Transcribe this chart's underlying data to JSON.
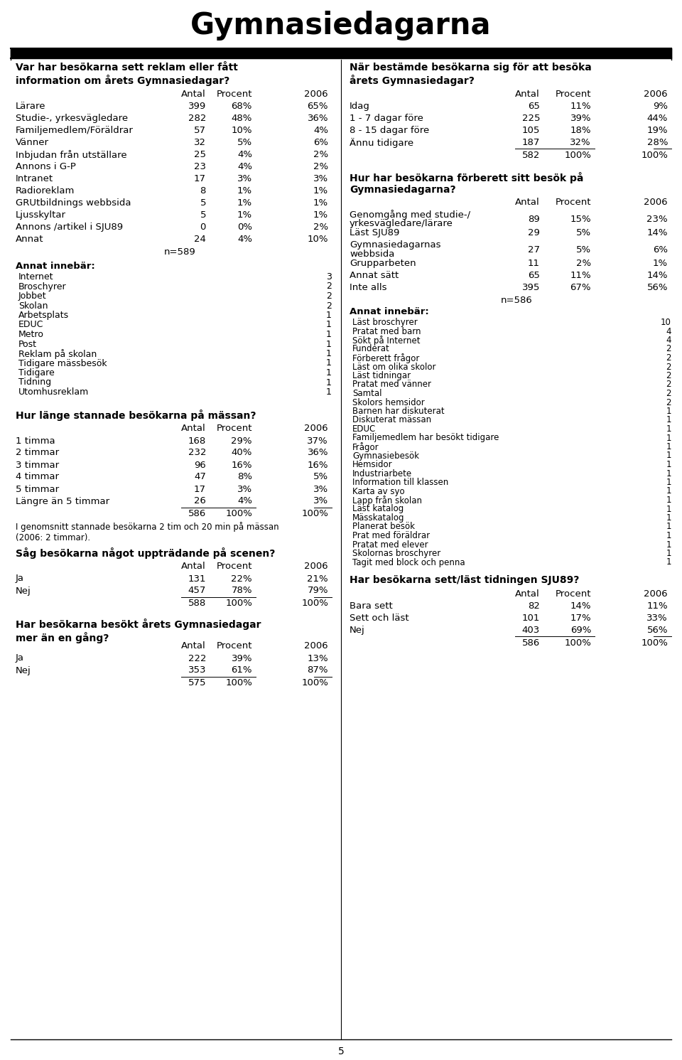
{
  "title": "Gymnasiedagarna",
  "bg_color": "#ffffff",
  "text_color": "#000000",
  "left_col": {
    "q1_title": "Var har besökarna sett reklam eller fått\ninformation om årets Gymnasiedagar?",
    "q1_headers": [
      "Antal",
      "Procent",
      "2006"
    ],
    "q1_rows": [
      [
        "Lärare",
        "399",
        "68%",
        "65%"
      ],
      [
        "Studie-, yrkesvägledare",
        "282",
        "48%",
        "36%"
      ],
      [
        "Familjemedlem/Föräldrar",
        "57",
        "10%",
        "4%"
      ],
      [
        "Vänner",
        "32",
        "5%",
        "6%"
      ],
      [
        "Inbjudan från utställare",
        "25",
        "4%",
        "2%"
      ],
      [
        "Annons i G-P",
        "23",
        "4%",
        "2%"
      ],
      [
        "Intranet",
        "17",
        "3%",
        "3%"
      ],
      [
        "Radioreklam",
        "8",
        "1%",
        "1%"
      ],
      [
        "GRUtbildnings webbsida",
        "5",
        "1%",
        "1%"
      ],
      [
        "Ljusskyltar",
        "5",
        "1%",
        "1%"
      ],
      [
        "Annons /artikel i SJU89",
        "0",
        "0%",
        "2%"
      ],
      [
        "Annat",
        "24",
        "4%",
        "10%"
      ]
    ],
    "q1_n": "n=589",
    "annat_title": "Annat innebär:",
    "annat_rows": [
      [
        "Internet",
        "3"
      ],
      [
        "Broschyrer",
        "2"
      ],
      [
        "Jobbet",
        "2"
      ],
      [
        "Skolan",
        "2"
      ],
      [
        "Arbetsplats",
        "1"
      ],
      [
        "EDUC",
        "1"
      ],
      [
        "Metro",
        "1"
      ],
      [
        "Post",
        "1"
      ],
      [
        "Reklam på skolan",
        "1"
      ],
      [
        "Tidigare mässbesök",
        "1"
      ],
      [
        "Tidigare",
        "1"
      ],
      [
        "Tidning",
        "1"
      ],
      [
        "Utomhusreklam",
        "1"
      ]
    ],
    "q2_title": "Hur länge stannade besökarna på mässan?",
    "q2_headers": [
      "Antal",
      "Procent",
      "2006"
    ],
    "q2_rows": [
      [
        "1 timma",
        "168",
        "29%",
        "37%"
      ],
      [
        "2 timmar",
        "232",
        "40%",
        "36%"
      ],
      [
        "3 timmar",
        "96",
        "16%",
        "16%"
      ],
      [
        "4 timmar",
        "47",
        "8%",
        "5%"
      ],
      [
        "5 timmar",
        "17",
        "3%",
        "3%"
      ],
      [
        "Längre än 5 timmar",
        "26",
        "4%",
        "3%"
      ]
    ],
    "q2_total": [
      "586",
      "100%",
      "100%"
    ],
    "q2_note": "I genomsnitt stannade besökarna 2 tim och 20 min på mässan\n(2006: 2 timmar).",
    "q3_title": "Såg besökarna något uppträdande på scenen?",
    "q3_headers": [
      "Antal",
      "Procent",
      "2006"
    ],
    "q3_rows": [
      [
        "Ja",
        "131",
        "22%",
        "21%"
      ],
      [
        "Nej",
        "457",
        "78%",
        "79%"
      ]
    ],
    "q3_total": [
      "588",
      "100%",
      "100%"
    ],
    "q4_title": "Har besökarna besökt årets Gymnasiedagar\nmer än en gång?",
    "q4_headers": [
      "Antal",
      "Procent",
      "2006"
    ],
    "q4_rows": [
      [
        "Ja",
        "222",
        "39%",
        "13%"
      ],
      [
        "Nej",
        "353",
        "61%",
        "87%"
      ]
    ],
    "q4_total": [
      "575",
      "100%",
      "100%"
    ]
  },
  "right_col": {
    "q1_title": "När bestämde besökarna sig för att besöka\nårets Gymnasiedagar?",
    "q1_headers": [
      "Antal",
      "Procent",
      "2006"
    ],
    "q1_rows": [
      [
        "Idag",
        "65",
        "11%",
        "9%"
      ],
      [
        "1 - 7 dagar före",
        "225",
        "39%",
        "44%"
      ],
      [
        "8 - 15 dagar före",
        "105",
        "18%",
        "19%"
      ],
      [
        "Ännu tidigare",
        "187",
        "32%",
        "28%"
      ]
    ],
    "q1_total": [
      "582",
      "100%",
      "100%"
    ],
    "q2_title": "Hur har besökarna förberett sitt besök på\nGymnasiedagarna?",
    "q2_headers": [
      "Antal",
      "Procent",
      "2006"
    ],
    "q2_rows": [
      [
        "Genomgång med studie-/\nyrkesvägledare/lärare",
        "89",
        "15%",
        "23%"
      ],
      [
        "Läst SJU89",
        "29",
        "5%",
        "14%"
      ],
      [
        "Gymnasiedagarnas\nwebbsida",
        "27",
        "5%",
        "6%"
      ],
      [
        "Grupparbeten",
        "11",
        "2%",
        "1%"
      ],
      [
        "Annat sätt",
        "65",
        "11%",
        "14%"
      ]
    ],
    "q2_inte_alls": [
      "Inte alls",
      "395",
      "67%",
      "56%"
    ],
    "q2_n": "n=586",
    "annat_title": "Annat innebär:",
    "annat_rows": [
      [
        "Läst broschyrer",
        "10"
      ],
      [
        "Pratat med barn",
        "4"
      ],
      [
        "Sökt på Internet",
        "4"
      ],
      [
        "Funderat",
        "2"
      ],
      [
        "Förberett frågor",
        "2"
      ],
      [
        "Läst om olika skolor",
        "2"
      ],
      [
        "Läst tidningar",
        "2"
      ],
      [
        "Pratat med vänner",
        "2"
      ],
      [
        "Samtal",
        "2"
      ],
      [
        "Skolors hemsidor",
        "2"
      ],
      [
        "Barnen har diskuterat",
        "1"
      ],
      [
        "Diskuterat mässan",
        "1"
      ],
      [
        "EDUC",
        "1"
      ],
      [
        "Familjemedlem har besökt tidigare",
        "1"
      ],
      [
        "Frågor",
        "1"
      ],
      [
        "Gymnasiebesök",
        "1"
      ],
      [
        "Hemsidor",
        "1"
      ],
      [
        "Industriarbete",
        "1"
      ],
      [
        "Information till klassen",
        "1"
      ],
      [
        "Karta av syo",
        "1"
      ],
      [
        "Lapp från skolan",
        "1"
      ],
      [
        "Läst katalog",
        "1"
      ],
      [
        "Mässkatalog",
        "1"
      ],
      [
        "Planerat besök",
        "1"
      ],
      [
        "Prat med föräldrar",
        "1"
      ],
      [
        "Pratat med elever",
        "1"
      ],
      [
        "Skolornas broschyrer",
        "1"
      ],
      [
        "Tagit med block och penna",
        "1"
      ]
    ],
    "q3_title": "Har besökarna sett/läst tidningen SJU89?",
    "q3_headers": [
      "Antal",
      "Procent",
      "2006"
    ],
    "q3_rows": [
      [
        "Bara sett",
        "82",
        "14%",
        "11%"
      ],
      [
        "Sett och läst",
        "101",
        "17%",
        "33%"
      ],
      [
        "Nej",
        "403",
        "69%",
        "56%"
      ]
    ],
    "q3_total": [
      "586",
      "100%",
      "100%"
    ]
  },
  "page_number": "5"
}
